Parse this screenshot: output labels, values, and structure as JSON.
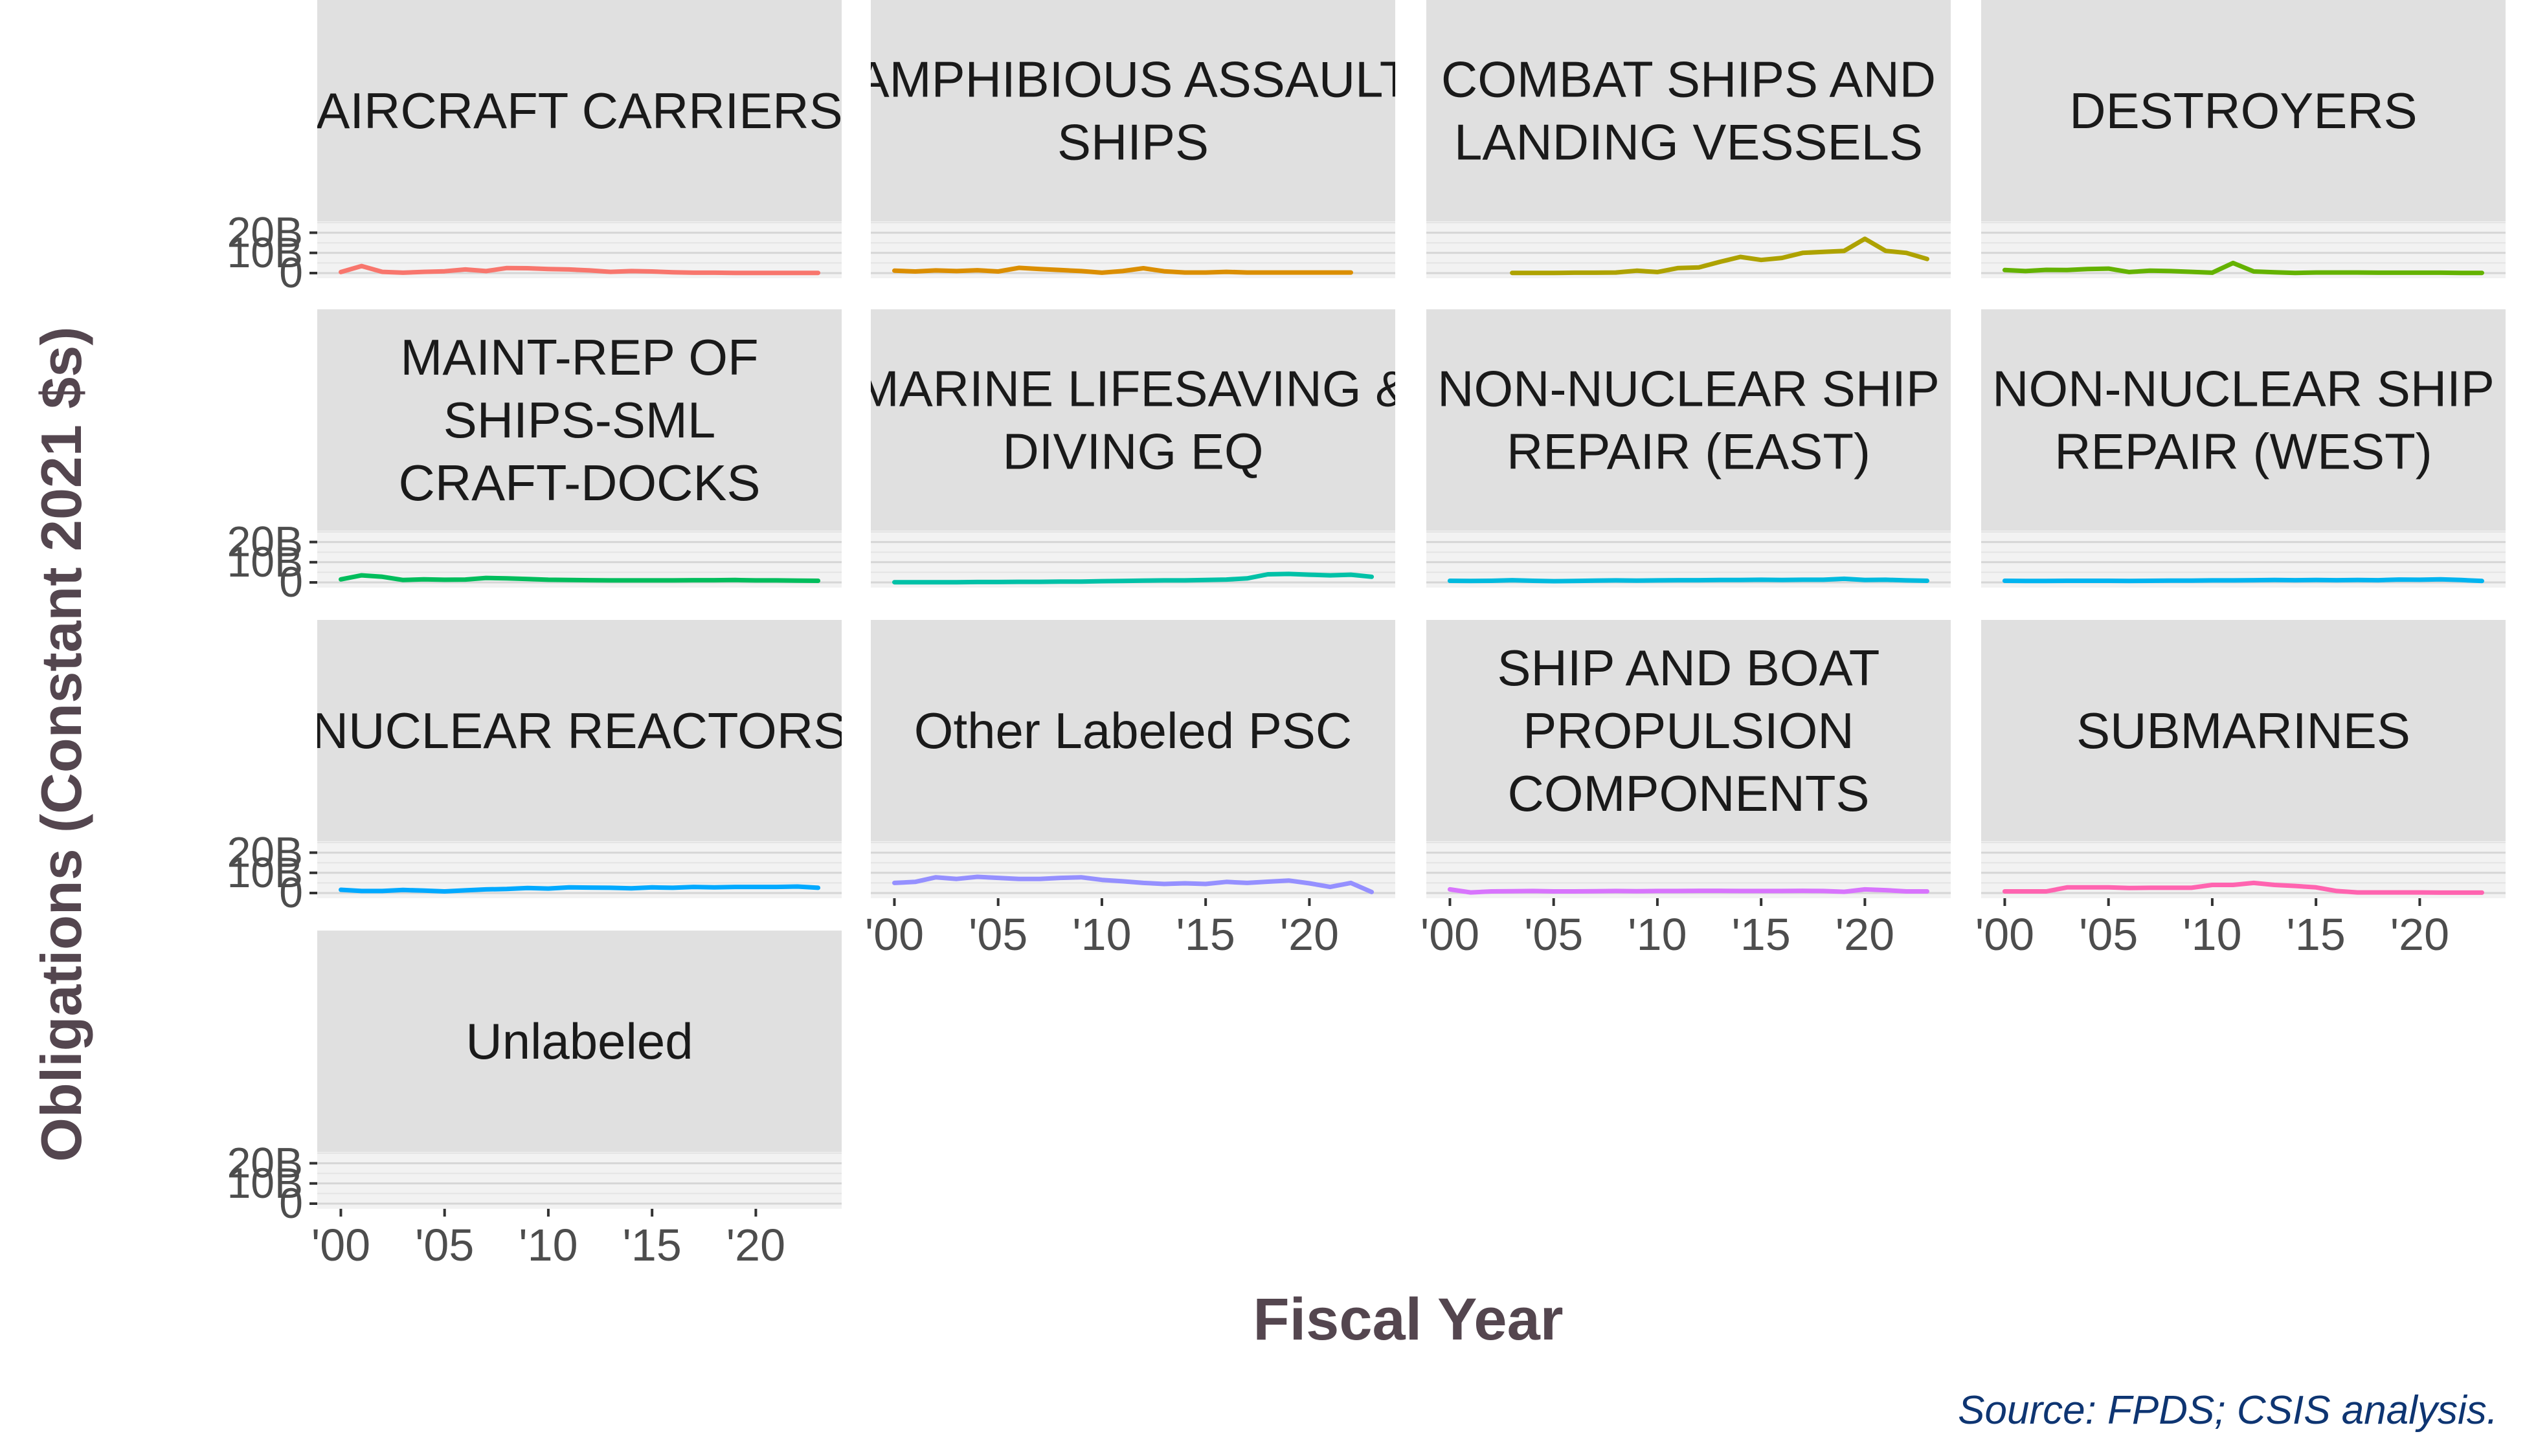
{
  "chart_data": {
    "type": "line",
    "layout": "small-multiples",
    "ylabel": "Obligations (Constant 2021 $s)",
    "xlabel": "Fiscal Year",
    "source": "Source: FPDS; CSIS analysis.",
    "x_range": [
      2000,
      2023
    ],
    "x_ticks": [
      2000,
      2005,
      2010,
      2015,
      2020
    ],
    "x_tick_labels": [
      "'00",
      "'05",
      "'10",
      "'15",
      "'20"
    ],
    "y_range": [
      0,
      25
    ],
    "y_unit": "billions",
    "y_ticks": [
      0,
      10,
      20
    ],
    "y_tick_labels": [
      "0",
      "10B",
      "20B"
    ],
    "grid": true,
    "panels": [
      {
        "label": "AIRCRAFT CARRIERS",
        "color": "#F8766D",
        "x": [
          2000,
          2001,
          2002,
          2003,
          2004,
          2005,
          2006,
          2007,
          2008,
          2009,
          2010,
          2011,
          2012,
          2013,
          2014,
          2015,
          2016,
          2017,
          2018,
          2019,
          2020,
          2021,
          2022,
          2023
        ],
        "y": [
          0.5,
          3.5,
          0.6,
          0.2,
          0.6,
          0.9,
          1.8,
          1.0,
          2.5,
          2.4,
          2.0,
          1.8,
          1.3,
          0.6,
          1.0,
          0.8,
          0.4,
          0.2,
          0.2,
          0.1,
          0.1,
          0.1,
          0.1,
          0.1
        ]
      },
      {
        "label": "AMPHIBIOUS ASSAULT SHIPS",
        "color": "#DB8E00",
        "x": [
          2000,
          2001,
          2002,
          2003,
          2004,
          2005,
          2006,
          2007,
          2008,
          2009,
          2010,
          2011,
          2012,
          2013,
          2014,
          2015,
          2016,
          2017,
          2018,
          2019,
          2020,
          2021,
          2022
        ],
        "y": [
          1.2,
          0.8,
          1.3,
          1.0,
          1.4,
          0.8,
          2.6,
          2.0,
          1.5,
          1.0,
          0.2,
          1.0,
          2.4,
          0.9,
          0.3,
          0.3,
          0.6,
          0.3,
          0.3,
          0.3,
          0.3,
          0.3,
          0.3
        ]
      },
      {
        "label": "COMBAT SHIPS AND LANDING VESSELS",
        "color": "#AEA200",
        "x": [
          2003,
          2004,
          2005,
          2006,
          2007,
          2008,
          2009,
          2010,
          2011,
          2012,
          2013,
          2014,
          2015,
          2016,
          2017,
          2018,
          2019,
          2020,
          2021,
          2022,
          2023
        ],
        "y": [
          0.1,
          0.1,
          0.1,
          0.2,
          0.2,
          0.3,
          1.2,
          0.5,
          2.5,
          2.8,
          5.5,
          8.0,
          6.5,
          7.5,
          10.0,
          10.5,
          11.0,
          17.0,
          11.0,
          10.0,
          7.0
        ]
      },
      {
        "label": "DESTROYERS",
        "color": "#64B200",
        "x": [
          2000,
          2001,
          2002,
          2003,
          2004,
          2005,
          2006,
          2007,
          2008,
          2009,
          2010,
          2011,
          2012,
          2013,
          2014,
          2015,
          2016,
          2017,
          2018,
          2019,
          2020,
          2021,
          2022,
          2023
        ],
        "y": [
          1.5,
          1.0,
          1.6,
          1.5,
          2.0,
          2.2,
          0.5,
          1.2,
          1.0,
          0.6,
          0.2,
          5.0,
          0.8,
          0.4,
          0.1,
          0.3,
          0.3,
          0.3,
          0.2,
          0.2,
          0.2,
          0.2,
          0.1,
          0.1
        ]
      },
      {
        "label": "MAINT-REP OF SHIPS-SML CRAFT-DOCKS",
        "color": "#00BD5C",
        "x": [
          2000,
          2001,
          2002,
          2003,
          2004,
          2005,
          2006,
          2007,
          2008,
          2009,
          2010,
          2011,
          2012,
          2013,
          2014,
          2015,
          2016,
          2017,
          2018,
          2019,
          2020,
          2021,
          2022,
          2023
        ],
        "y": [
          1.5,
          3.5,
          2.8,
          1.2,
          1.5,
          1.3,
          1.4,
          2.2,
          2.0,
          1.7,
          1.3,
          1.2,
          1.1,
          1.0,
          1.0,
          1.0,
          1.0,
          1.1,
          1.1,
          1.2,
          1.0,
          1.0,
          0.9,
          0.8
        ]
      },
      {
        "label": "MARINE LIFESAVING & DIVING EQ",
        "color": "#00C1A7",
        "x": [
          2000,
          2001,
          2002,
          2003,
          2004,
          2005,
          2006,
          2007,
          2008,
          2009,
          2010,
          2011,
          2012,
          2013,
          2014,
          2015,
          2016,
          2017,
          2018,
          2019,
          2020,
          2021,
          2022,
          2023
        ],
        "y": [
          0.1,
          0.1,
          0.1,
          0.1,
          0.2,
          0.2,
          0.3,
          0.3,
          0.4,
          0.4,
          0.6,
          0.7,
          0.9,
          1.0,
          1.0,
          1.2,
          1.4,
          2.0,
          4.0,
          4.2,
          3.8,
          3.5,
          3.8,
          2.8
        ]
      },
      {
        "label": "NON-NUCLEAR SHIP REPAIR (EAST)",
        "color": "#00BADE",
        "x": [
          2000,
          2001,
          2002,
          2003,
          2004,
          2005,
          2006,
          2007,
          2008,
          2009,
          2010,
          2011,
          2012,
          2013,
          2014,
          2015,
          2016,
          2017,
          2018,
          2019,
          2020,
          2021,
          2022,
          2023
        ],
        "y": [
          0.8,
          0.7,
          0.8,
          1.1,
          0.8,
          0.6,
          0.7,
          0.9,
          1.0,
          0.9,
          1.0,
          1.1,
          1.1,
          1.2,
          1.2,
          1.3,
          1.2,
          1.3,
          1.3,
          1.8,
          1.2,
          1.3,
          1.0,
          0.8
        ]
      },
      {
        "label": "NON-NUCLEAR SHIP REPAIR (WEST)",
        "color": "#00B4F0",
        "x": [
          2000,
          2001,
          2002,
          2003,
          2004,
          2005,
          2006,
          2007,
          2008,
          2009,
          2010,
          2011,
          2012,
          2013,
          2014,
          2015,
          2016,
          2017,
          2018,
          2019,
          2020,
          2021,
          2022,
          2023
        ],
        "y": [
          0.8,
          0.7,
          0.7,
          0.8,
          0.8,
          0.8,
          0.7,
          0.8,
          0.9,
          0.9,
          1.0,
          1.0,
          1.1,
          1.2,
          1.1,
          1.2,
          1.1,
          1.2,
          1.1,
          1.4,
          1.3,
          1.5,
          1.2,
          0.7
        ]
      },
      {
        "label": "NUCLEAR REACTORS",
        "color": "#00A9FF",
        "x": [
          2000,
          2001,
          2002,
          2003,
          2004,
          2005,
          2006,
          2007,
          2008,
          2009,
          2010,
          2011,
          2012,
          2013,
          2014,
          2015,
          2016,
          2017,
          2018,
          2019,
          2020,
          2021,
          2022,
          2023
        ],
        "y": [
          1.6,
          1.0,
          1.0,
          1.5,
          1.2,
          0.8,
          1.3,
          1.8,
          2.0,
          2.5,
          2.2,
          2.8,
          2.7,
          2.6,
          2.3,
          2.8,
          2.6,
          3.0,
          2.8,
          3.0,
          3.0,
          3.0,
          3.2,
          2.6
        ]
      },
      {
        "label": "Other Labeled PSC",
        "color": "#9590FF",
        "x": [
          2000,
          2001,
          2002,
          2003,
          2004,
          2005,
          2006,
          2007,
          2008,
          2009,
          2010,
          2011,
          2012,
          2013,
          2014,
          2015,
          2016,
          2017,
          2018,
          2019,
          2020,
          2021,
          2022,
          2023
        ],
        "y": [
          5.0,
          5.5,
          7.8,
          7.0,
          8.0,
          7.5,
          7.0,
          7.0,
          7.5,
          7.8,
          6.5,
          5.8,
          5.0,
          4.5,
          4.8,
          4.5,
          5.5,
          5.0,
          5.6,
          6.2,
          4.8,
          3.0,
          5.0,
          0.5
        ]
      },
      {
        "label": "SHIP AND BOAT PROPULSION COMPONENTS",
        "color": "#D874FD",
        "x": [
          2000,
          2001,
          2002,
          2003,
          2004,
          2005,
          2006,
          2007,
          2008,
          2009,
          2010,
          2011,
          2012,
          2013,
          2014,
          2015,
          2016,
          2017,
          2018,
          2019,
          2020,
          2021,
          2022,
          2023
        ],
        "y": [
          1.8,
          0.3,
          0.8,
          0.9,
          1.0,
          0.8,
          0.8,
          0.9,
          1.0,
          0.9,
          1.0,
          1.0,
          1.1,
          1.1,
          1.0,
          1.0,
          1.0,
          1.1,
          1.0,
          0.6,
          1.8,
          1.4,
          0.8,
          0.8
        ]
      },
      {
        "label": "SUBMARINES",
        "color": "#FF64B0",
        "x": [
          2000,
          2001,
          2002,
          2003,
          2004,
          2005,
          2006,
          2007,
          2008,
          2009,
          2010,
          2011,
          2012,
          2013,
          2014,
          2015,
          2016,
          2017,
          2018,
          2019,
          2020,
          2021,
          2022,
          2023
        ],
        "y": [
          0.8,
          0.8,
          0.8,
          2.8,
          2.8,
          2.8,
          2.5,
          2.6,
          2.6,
          2.6,
          4.0,
          4.0,
          5.0,
          4.0,
          3.5,
          2.8,
          1.0,
          0.3,
          0.3,
          0.3,
          0.3,
          0.2,
          0.2,
          0.2
        ]
      },
      {
        "label": "Unlabeled",
        "color": "#FF61C3",
        "x": [],
        "y": []
      }
    ]
  }
}
